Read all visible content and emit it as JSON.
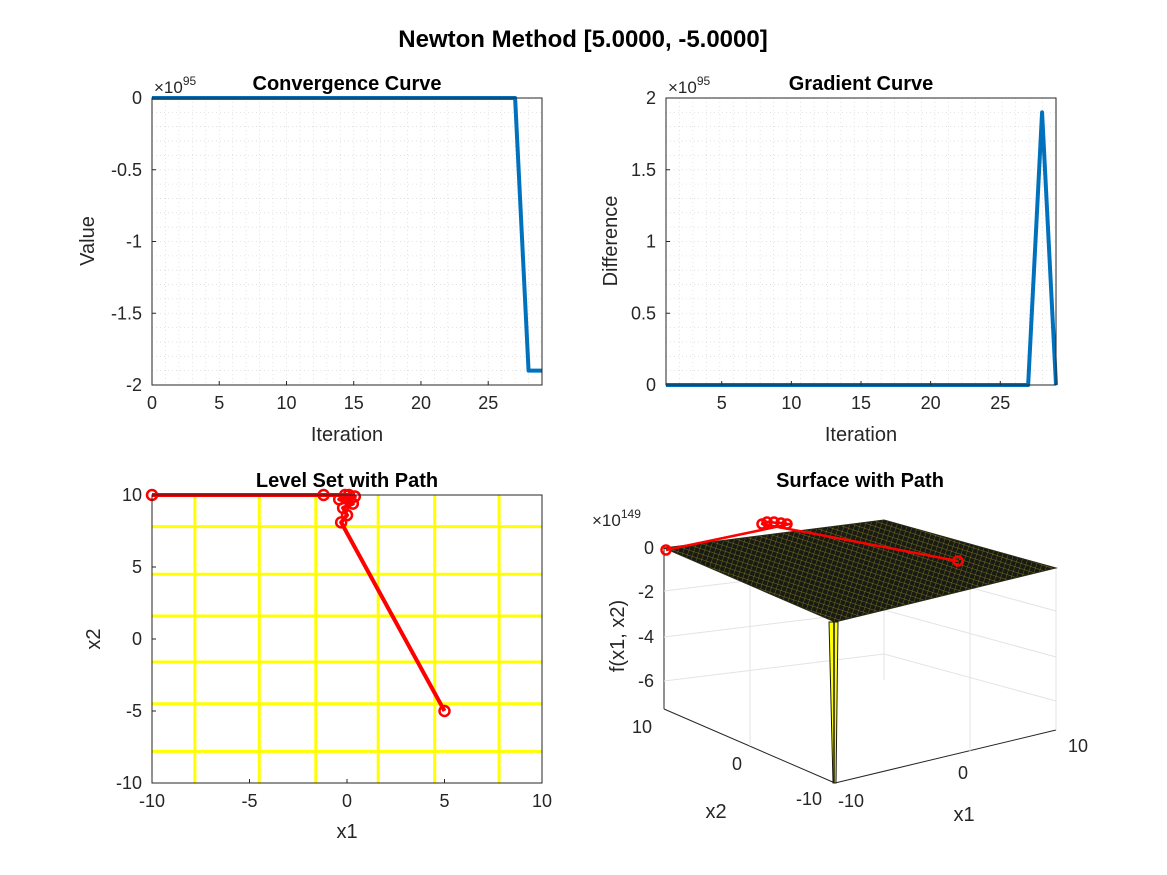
{
  "figure": {
    "title": "Newton Method [5.0000, -5.0000]"
  },
  "chart_data": [
    {
      "type": "line",
      "title": "Convergence Curve",
      "xlabel": "Iteration",
      "ylabel": "Value",
      "exponent_base": "×10",
      "exponent": "95",
      "xlim": [
        0,
        29
      ],
      "ylim": [
        -2,
        0
      ],
      "xticks": [
        "0",
        "5",
        "10",
        "15",
        "20",
        "25"
      ],
      "xtick_values": [
        0,
        5,
        10,
        15,
        20,
        25
      ],
      "yticks": [
        "0",
        "-0.5",
        "-1",
        "-1.5",
        "-2"
      ],
      "ytick_values": [
        0,
        -0.5,
        -1,
        -1.5,
        -2
      ],
      "grid": true,
      "color": "#0072BD",
      "series": [
        {
          "x": [
            0,
            27,
            28,
            29
          ],
          "y": [
            0,
            0,
            -1.9,
            -1.9
          ]
        }
      ]
    },
    {
      "type": "line",
      "title": "Gradient Curve",
      "xlabel": "Iteration",
      "ylabel": "Difference",
      "exponent_base": "×10",
      "exponent": "95",
      "xlim": [
        1,
        29
      ],
      "ylim": [
        0,
        2
      ],
      "xticks": [
        "5",
        "10",
        "15",
        "20",
        "25"
      ],
      "xtick_values": [
        5,
        10,
        15,
        20,
        25
      ],
      "yticks": [
        "2",
        "1.5",
        "1",
        "0.5",
        "0"
      ],
      "ytick_values": [
        2,
        1.5,
        1,
        0.5,
        0
      ],
      "grid": true,
      "color": "#0072BD",
      "series": [
        {
          "x": [
            1,
            27,
            28,
            29
          ],
          "y": [
            0,
            0,
            1.9,
            0
          ]
        }
      ]
    },
    {
      "type": "contour",
      "title": "Level Set with Path",
      "xlabel": "x1",
      "ylabel": "x2",
      "xlim": [
        -10,
        10
      ],
      "ylim": [
        -10,
        10
      ],
      "xticks": [
        "-10",
        "-5",
        "0",
        "5",
        "10"
      ],
      "xtick_values": [
        -10,
        -5,
        0,
        5,
        10
      ],
      "yticks": [
        "10",
        "5",
        "0",
        "-5",
        "-10"
      ],
      "ytick_values": [
        10,
        5,
        0,
        -5,
        -10
      ],
      "level_color": "#FFFF00",
      "level_x": [
        -7.8,
        -4.5,
        -1.6,
        1.6,
        4.5,
        7.8
      ],
      "level_y": [
        7.8,
        4.5,
        1.6,
        -1.6,
        -4.5,
        -7.8
      ],
      "path_color": "#FF0000",
      "path": {
        "x": [
          5,
          -0.3,
          0,
          -0.2,
          0.3,
          -0.4,
          0.4,
          -0.1,
          0.1,
          -1.2,
          -10
        ],
        "y": [
          -5,
          8.1,
          8.6,
          9.1,
          9.4,
          9.7,
          9.9,
          10,
          10,
          10,
          10
        ]
      }
    },
    {
      "type": "surface",
      "title": "Surface with Path",
      "xlabel": "x1",
      "ylabel": "x2",
      "zlabel": "f(x1, x2)",
      "exponent_base": "×10",
      "exponent": "149",
      "xticks": [
        "-10",
        "0",
        "10"
      ],
      "yticks": [
        "-10",
        "0",
        "10"
      ],
      "zticks": [
        "0",
        "-2",
        "-4",
        "-6"
      ],
      "surface_color": "#1a1a14",
      "mesh_color": "#8a8a1e",
      "spike_color": "#FFFF00",
      "path_color": "#FF0000"
    }
  ]
}
